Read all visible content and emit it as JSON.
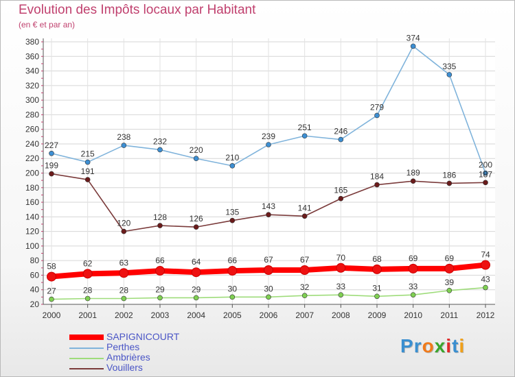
{
  "title": "Evolution des Impôts locaux par Habitant",
  "subtitle": "(en € et par an)",
  "logo": {
    "text": "Proxiti",
    "colors": [
      "#3a8fd0",
      "#3a8fd0",
      "#f07a1a",
      "#3aa52c",
      "#e02a2a",
      "#3a8fd0",
      "#f0a01a"
    ]
  },
  "chart_data": {
    "type": "line",
    "x": [
      "2000",
      "2001",
      "2002",
      "2003",
      "2004",
      "2005",
      "2006",
      "2007",
      "2008",
      "2009",
      "2010",
      "2011",
      "2012"
    ],
    "ylim": [
      20,
      380
    ],
    "yticks": [
      "20",
      "40",
      "60",
      "80",
      "100",
      "120",
      "140",
      "160",
      "180",
      "200",
      "220",
      "240",
      "260",
      "280",
      "300",
      "320",
      "340",
      "360",
      "380"
    ],
    "grid": true,
    "legend_position": "bottom-left",
    "series": [
      {
        "name": "SAPIGNICOURT",
        "color": "#ff0000",
        "marker": "#ee1111",
        "thick": true,
        "values": [
          58,
          62,
          63,
          66,
          64,
          66,
          67,
          67,
          70,
          68,
          69,
          69,
          74
        ],
        "labels": [
          "58",
          "62",
          "63",
          "66",
          "64",
          "66",
          "67",
          "67",
          "70",
          "68",
          "69",
          "69",
          "74"
        ]
      },
      {
        "name": "Perthes",
        "color": "#7fb3db",
        "marker": "#3d8fd3",
        "thick": false,
        "values": [
          227,
          215,
          238,
          232,
          220,
          210,
          239,
          251,
          246,
          279,
          374,
          335,
          200
        ],
        "labels": [
          "227",
          "215",
          "238",
          "232",
          "220",
          "210",
          "239",
          "251",
          "246",
          "279",
          "374",
          "335",
          "200"
        ]
      },
      {
        "name": "Ambrières",
        "color": "#9edc7a",
        "marker": "#7fd052",
        "thick": false,
        "values": [
          27,
          28,
          28,
          29,
          29,
          30,
          30,
          32,
          33,
          31,
          33,
          39,
          43
        ],
        "labels": [
          "27",
          "28",
          "28",
          "29",
          "29",
          "30",
          "30",
          "32",
          "33",
          "31",
          "33",
          "39",
          "43"
        ]
      },
      {
        "name": "Vouillers",
        "color": "#7a3a3a",
        "marker": "#6b1b1b",
        "thick": false,
        "values": [
          199,
          191,
          120,
          128,
          126,
          135,
          143,
          141,
          165,
          184,
          189,
          186,
          187
        ],
        "labels": [
          "199",
          "191",
          "120",
          "128",
          "126",
          "135",
          "143",
          "141",
          "165",
          "184",
          "189",
          "186",
          "187"
        ]
      }
    ]
  }
}
